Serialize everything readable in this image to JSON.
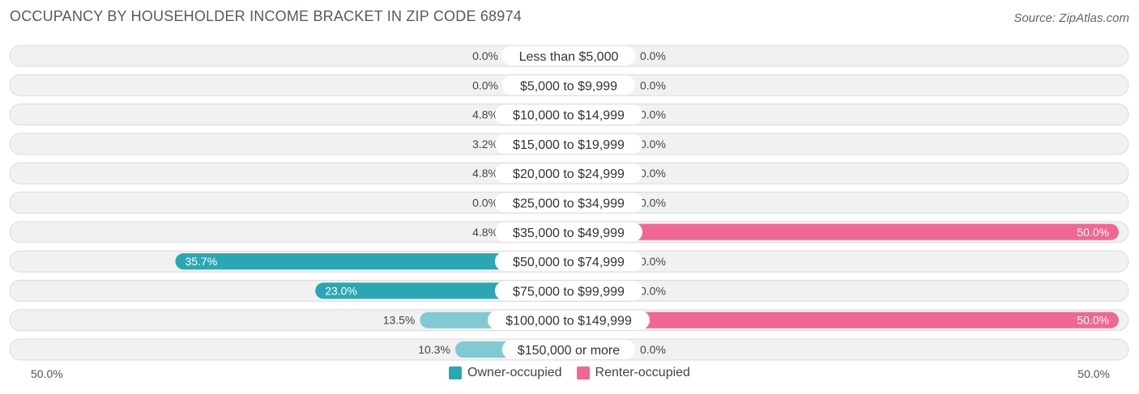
{
  "title": "OCCUPANCY BY HOUSEHOLDER INCOME BRACKET IN ZIP CODE 68974",
  "source": "Source: ZipAtlas.com",
  "colors": {
    "owner_strong": "#2ba6b5",
    "owner_light": "#7fcad3",
    "renter_strong": "#f06792",
    "renter_light": "#f7a9c2",
    "track": "#f1f1f1"
  },
  "chart_data": {
    "type": "bar",
    "orientation": "horizontal-diverging",
    "categories": [
      "Less than $5,000",
      "$5,000 to $9,999",
      "$10,000 to $14,999",
      "$15,000 to $19,999",
      "$20,000 to $24,999",
      "$25,000 to $34,999",
      "$35,000 to $49,999",
      "$50,000 to $74,999",
      "$75,000 to $99,999",
      "$100,000 to $149,999",
      "$150,000 or more"
    ],
    "series": [
      {
        "name": "Owner-occupied",
        "values": [
          0.0,
          0.0,
          4.8,
          3.2,
          4.8,
          0.0,
          4.8,
          35.7,
          23.0,
          13.5,
          10.3
        ],
        "labels": [
          "0.0%",
          "0.0%",
          "4.8%",
          "3.2%",
          "4.8%",
          "0.0%",
          "4.8%",
          "35.7%",
          "23.0%",
          "13.5%",
          "10.3%"
        ]
      },
      {
        "name": "Renter-occupied",
        "values": [
          0.0,
          0.0,
          0.0,
          0.0,
          0.0,
          0.0,
          50.0,
          0.0,
          0.0,
          50.0,
          0.0
        ],
        "labels": [
          "0.0%",
          "0.0%",
          "0.0%",
          "0.0%",
          "0.0%",
          "0.0%",
          "50.0%",
          "0.0%",
          "0.0%",
          "50.0%",
          "0.0%"
        ]
      }
    ],
    "axis": {
      "left_label": "50.0%",
      "right_label": "50.0%",
      "range": [
        -50,
        50
      ]
    },
    "legend": {
      "position": "bottom-center"
    }
  }
}
